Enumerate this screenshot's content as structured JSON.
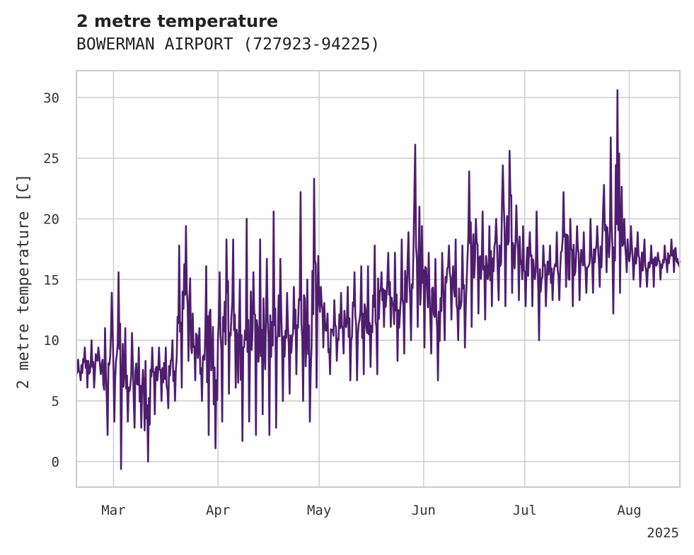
{
  "chart_data": {
    "type": "line",
    "title": "2 metre temperature",
    "subtitle": "BOWERMAN AIRPORT (727923-94225)",
    "ylabel": "2 metre temperature [C]",
    "xlabel": "",
    "year_label": "2025",
    "x_tick_labels": [
      "Mar",
      "Apr",
      "May",
      "Jun",
      "Jul",
      "Aug"
    ],
    "x_ticks": [
      "2025-03-01",
      "2025-04-01",
      "2025-05-01",
      "2025-06-01",
      "2025-07-01",
      "2025-08-01"
    ],
    "y_ticks": [
      0,
      5,
      10,
      15,
      20,
      25,
      30
    ],
    "xlim": [
      "2025-02-18",
      "2025-08-16"
    ],
    "ylim": [
      -2.1,
      32.2
    ],
    "grid": true,
    "line_color": "#4f1d6e",
    "series": [
      {
        "x": [
          "2025-02-18",
          "2025-02-20",
          "2025-02-22",
          "2025-02-24",
          "2025-02-26",
          "2025-02-28",
          "2025-03-02",
          "2025-03-04",
          "2025-03-06",
          "2025-03-08",
          "2025-03-10",
          "2025-03-12",
          "2025-03-14",
          "2025-03-16",
          "2025-03-18",
          "2025-03-20",
          "2025-03-22",
          "2025-03-24",
          "2025-03-26",
          "2025-03-28",
          "2025-03-30",
          "2025-04-01",
          "2025-04-03",
          "2025-04-05",
          "2025-04-07",
          "2025-04-09",
          "2025-04-11",
          "2025-04-13",
          "2025-04-15",
          "2025-04-17",
          "2025-04-19",
          "2025-04-21",
          "2025-04-23",
          "2025-04-25",
          "2025-04-27",
          "2025-04-29",
          "2025-05-01",
          "2025-05-03",
          "2025-05-05",
          "2025-05-07",
          "2025-05-09",
          "2025-05-11",
          "2025-05-13",
          "2025-05-15",
          "2025-05-17",
          "2025-05-19",
          "2025-05-21",
          "2025-05-23",
          "2025-05-25",
          "2025-05-27",
          "2025-05-29",
          "2025-05-31",
          "2025-06-02",
          "2025-06-04",
          "2025-06-06",
          "2025-06-08",
          "2025-06-10",
          "2025-06-12",
          "2025-06-14",
          "2025-06-16",
          "2025-06-18",
          "2025-06-20",
          "2025-06-22",
          "2025-06-24",
          "2025-06-26",
          "2025-06-28",
          "2025-06-30",
          "2025-07-02",
          "2025-07-04",
          "2025-07-06",
          "2025-07-08",
          "2025-07-10",
          "2025-07-12",
          "2025-07-14",
          "2025-07-16",
          "2025-07-18",
          "2025-07-20",
          "2025-07-22",
          "2025-07-24",
          "2025-07-26",
          "2025-07-28",
          "2025-07-30",
          "2025-08-01",
          "2025-08-03",
          "2025-08-05",
          "2025-08-07",
          "2025-08-09",
          "2025-08-11",
          "2025-08-13",
          "2025-08-15"
        ],
        "hi": [
          8.4,
          9.4,
          10.0,
          9.4,
          11.0,
          13.9,
          15.6,
          11.0,
          10.6,
          9.4,
          8.3,
          9.4,
          9.4,
          9.4,
          10.0,
          17.8,
          19.4,
          12.2,
          11.0,
          16.1,
          11.1,
          15.6,
          18.3,
          18.3,
          15.0,
          20.0,
          15.6,
          18.3,
          16.7,
          20.6,
          16.7,
          13.9,
          14.4,
          22.2,
          15.0,
          23.3,
          14.4,
          12.2,
          13.3,
          13.9,
          14.4,
          15.6,
          16.1,
          16.1,
          17.8,
          15.6,
          17.2,
          17.2,
          18.3,
          18.9,
          26.1,
          19.4,
          17.2,
          16.7,
          17.2,
          17.8,
          18.3,
          17.8,
          23.9,
          20.0,
          20.6,
          19.4,
          20.0,
          24.4,
          25.6,
          21.1,
          19.4,
          18.9,
          20.6,
          17.8,
          17.8,
          18.9,
          22.2,
          20.0,
          19.4,
          18.9,
          20.0,
          19.4,
          22.8,
          26.7,
          30.6,
          20.0,
          19.4,
          18.9,
          18.3,
          17.8,
          17.2,
          17.8,
          18.3,
          16.7
        ],
        "lo": [
          6.7,
          6.1,
          6.1,
          7.2,
          2.2,
          3.3,
          -0.6,
          3.3,
          2.8,
          2.8,
          0.0,
          3.9,
          5.0,
          4.4,
          5.0,
          6.1,
          8.3,
          6.7,
          5.0,
          2.2,
          1.1,
          3.3,
          5.6,
          6.1,
          1.7,
          3.3,
          2.2,
          3.9,
          2.2,
          2.8,
          5.0,
          5.6,
          7.2,
          5.0,
          3.3,
          6.1,
          9.4,
          7.2,
          8.3,
          8.9,
          6.7,
          6.7,
          7.2,
          7.8,
          7.2,
          11.1,
          11.1,
          8.3,
          8.9,
          10.0,
          11.1,
          9.4,
          8.9,
          6.7,
          10.0,
          11.7,
          10.0,
          9.4,
          11.1,
          12.2,
          11.7,
          12.8,
          13.3,
          12.8,
          13.9,
          13.3,
          12.8,
          12.8,
          10.0,
          12.8,
          13.3,
          13.3,
          14.4,
          12.8,
          13.3,
          13.9,
          13.9,
          14.4,
          15.6,
          12.2,
          13.9,
          15.6,
          15.0,
          14.4,
          14.4,
          14.4,
          15.0,
          15.6,
          15.6,
          16.1
        ]
      }
    ]
  }
}
